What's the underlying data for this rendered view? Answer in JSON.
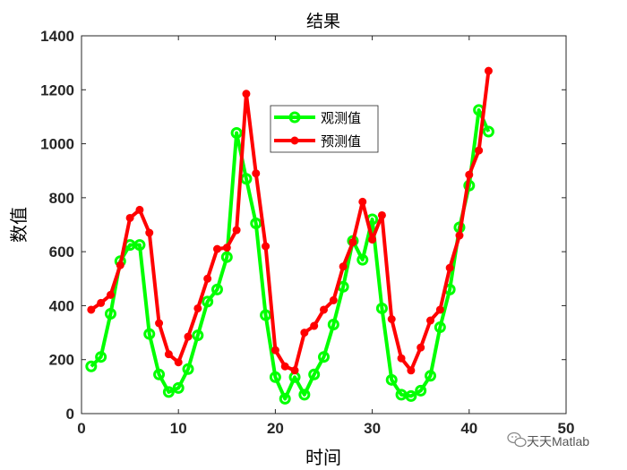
{
  "chart_data": {
    "type": "line",
    "title": "结果",
    "xlabel": "时间",
    "ylabel": "数值",
    "xlim": [
      0,
      50
    ],
    "ylim": [
      0,
      1400
    ],
    "xticks": [
      0,
      10,
      20,
      30,
      40,
      50
    ],
    "yticks": [
      0,
      200,
      400,
      600,
      800,
      1000,
      1200,
      1400
    ],
    "grid": false,
    "legend_position": "top-center",
    "x": [
      1,
      2,
      3,
      4,
      5,
      6,
      7,
      8,
      9,
      10,
      11,
      12,
      13,
      14,
      15,
      16,
      17,
      18,
      19,
      20,
      21,
      22,
      23,
      24,
      25,
      26,
      27,
      28,
      29,
      30,
      31,
      32,
      33,
      34,
      35,
      36,
      37,
      38,
      39,
      40,
      41,
      42
    ],
    "series": [
      {
        "name": "观测值",
        "color": "#00ff00",
        "marker": "open-circle",
        "values": [
          175,
          210,
          370,
          565,
          625,
          625,
          295,
          145,
          80,
          95,
          165,
          290,
          415,
          460,
          580,
          1040,
          870,
          705,
          365,
          135,
          55,
          135,
          70,
          145,
          210,
          330,
          470,
          640,
          570,
          720,
          390,
          125,
          70,
          65,
          85,
          140,
          320,
          460,
          690,
          845,
          1125,
          1045
        ]
      },
      {
        "name": "预测值",
        "color": "#ff0000",
        "marker": "filled-dot",
        "values": [
          385,
          410,
          440,
          550,
          725,
          755,
          670,
          335,
          220,
          190,
          285,
          390,
          500,
          610,
          615,
          680,
          1185,
          890,
          620,
          235,
          175,
          160,
          300,
          325,
          385,
          420,
          545,
          635,
          785,
          645,
          735,
          350,
          205,
          160,
          245,
          345,
          385,
          540,
          660,
          885,
          975,
          1270
        ]
      }
    ]
  },
  "watermark": {
    "text": "天天Matlab",
    "icon": "wechat-icon"
  }
}
